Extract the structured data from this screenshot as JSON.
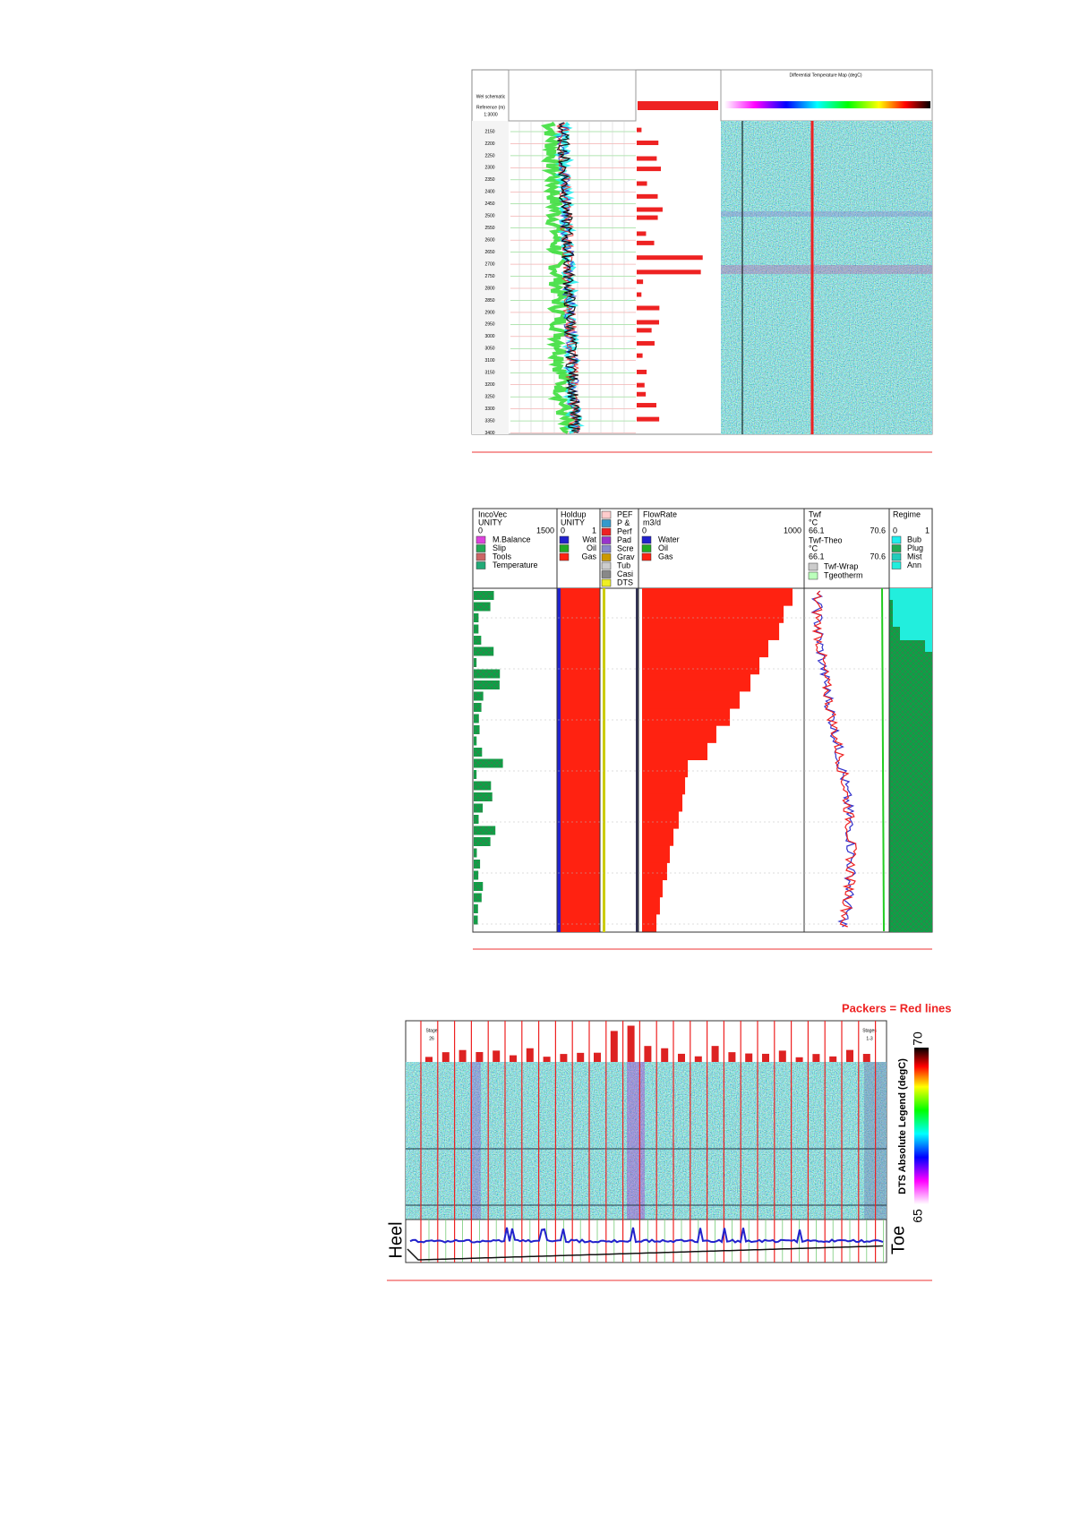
{
  "figure1": {
    "header": {
      "schematic": "Wel schematic",
      "reference": "Reference (m)",
      "scale": "1:3000",
      "map_title": "Differential Temperature Map (degC)"
    },
    "depths": [
      "2150",
      "2200",
      "2250",
      "2300",
      "2350",
      "2400",
      "2450",
      "2500",
      "2550",
      "2600",
      "2650",
      "2700",
      "2750",
      "2800",
      "2850",
      "2900",
      "2950",
      "3000",
      "3050",
      "3100",
      "3150",
      "3200",
      "3250",
      "3300",
      "3350",
      "3400"
    ]
  },
  "figure2": {
    "incovec": {
      "title": "IncoVec",
      "unit": "UNITY",
      "min": "0",
      "max": "1500",
      "legend": [
        "M.Balance",
        "Slip",
        "Tools",
        "Temperature"
      ]
    },
    "holdup": {
      "title": "Holdup",
      "unit": "UNITY",
      "min": "0",
      "max": "1",
      "legend": [
        "Wat",
        "Oil",
        "Gas"
      ]
    },
    "completion": {
      "legend": [
        "PEF",
        "P &",
        "Perf",
        "Pad",
        "Scre",
        "Grav",
        "Tub",
        "Casi",
        "DTS"
      ]
    },
    "flowrate": {
      "title": "FlowRate",
      "unit": "m3/d",
      "xlim": [
        0,
        1000
      ],
      "legend": [
        "Water",
        "Oil",
        "Gas"
      ],
      "values": [
        944,
        888,
        860,
        792,
        736,
        680,
        612,
        551,
        466,
        410,
        287,
        270,
        253,
        230,
        197,
        174,
        157,
        129,
        112,
        90
      ]
    },
    "twf": {
      "title": "Twf",
      "unit": "°C",
      "min": "66.1",
      "max": "70.6",
      "theo_title": "Twf-Theo",
      "theo_unit": "°C",
      "theo_min": "66.1",
      "theo_max": "70.6",
      "legend": [
        "Twf-Wrap",
        "Tgeotherm"
      ]
    },
    "regime": {
      "title": "Regime",
      "min": "0",
      "max": "1",
      "legend": [
        "Bub",
        "Plug",
        "Mist",
        "Ann"
      ]
    }
  },
  "figure3": {
    "packers": "Packers = Red lines",
    "stage_left": [
      "Stage",
      "26"
    ],
    "stage_right": [
      "Stages",
      "1-3"
    ],
    "heel": "Heel",
    "toe": "Toe",
    "legend_title": "DTS Absolute Legend (degC)",
    "legend_max": "70",
    "legend_min": "65"
  }
}
